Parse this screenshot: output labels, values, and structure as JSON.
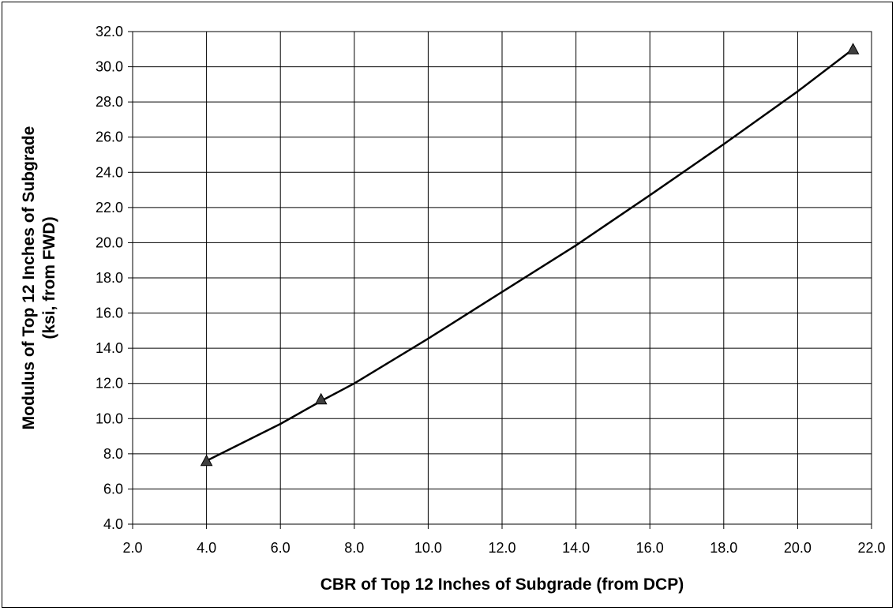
{
  "chart_data": {
    "type": "scatter",
    "xlabel": "CBR of Top 12 Inches of Subgrade (from DCP)",
    "ylabel_lines": [
      "Modulus of Top 12 Inches of Subgrade",
      "(ksi, from FWD)"
    ],
    "xlim": [
      2.0,
      22.0
    ],
    "ylim": [
      4.0,
      32.0
    ],
    "x_ticks": [
      "2.0",
      "4.0",
      "6.0",
      "8.0",
      "10.0",
      "12.0",
      "14.0",
      "16.0",
      "18.0",
      "20.0",
      "22.0"
    ],
    "y_ticks": [
      "4.0",
      "6.0",
      "8.0",
      "10.0",
      "12.0",
      "14.0",
      "16.0",
      "18.0",
      "20.0",
      "22.0",
      "24.0",
      "26.0",
      "28.0",
      "30.0",
      "32.0"
    ],
    "grid": true,
    "series": [
      {
        "marker": "triangle",
        "points": [
          {
            "x": 4.0,
            "y": 7.6
          },
          {
            "x": 7.1,
            "y": 11.1
          },
          {
            "x": 21.5,
            "y": 31.0
          }
        ]
      }
    ],
    "trendline": {
      "type": "line",
      "points": [
        {
          "x": 4.0,
          "y": 7.6
        },
        {
          "x": 5.0,
          "y": 8.65
        },
        {
          "x": 6.0,
          "y": 9.7
        },
        {
          "x": 7.1,
          "y": 11.0
        },
        {
          "x": 8.0,
          "y": 12.0
        },
        {
          "x": 10.0,
          "y": 14.55
        },
        {
          "x": 12.0,
          "y": 17.2
        },
        {
          "x": 14.0,
          "y": 19.85
        },
        {
          "x": 16.0,
          "y": 22.7
        },
        {
          "x": 18.0,
          "y": 25.6
        },
        {
          "x": 20.0,
          "y": 28.6
        },
        {
          "x": 21.5,
          "y": 31.0
        }
      ]
    },
    "colors": {
      "plot_background": "#ffffff",
      "grid": "#000000",
      "series": "#000000",
      "marker_fill": "#3f3f3f"
    }
  }
}
